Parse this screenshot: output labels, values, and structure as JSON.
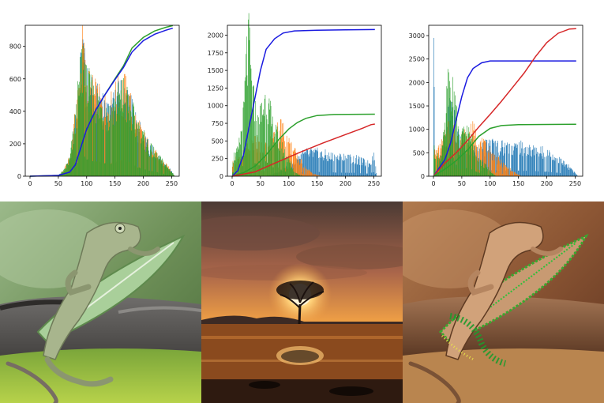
{
  "chart_data": [
    {
      "type": "bar",
      "xlim": [
        0,
        255
      ],
      "ylim": [
        0,
        930
      ],
      "xticks": [
        0,
        50,
        100,
        150,
        200,
        250
      ],
      "yticks": [
        0,
        200,
        400,
        600,
        800
      ],
      "bar_colors": [
        "#1f77b4",
        "#ff7f0e",
        "#2ca02c"
      ],
      "bar_profiles": [
        [
          [
            0,
            0
          ],
          [
            30,
            2
          ],
          [
            50,
            8
          ],
          [
            60,
            40
          ],
          [
            70,
            120
          ],
          [
            80,
            380
          ],
          [
            88,
            650
          ],
          [
            93,
            850
          ],
          [
            98,
            620
          ],
          [
            110,
            540
          ],
          [
            125,
            470
          ],
          [
            140,
            420
          ],
          [
            155,
            520
          ],
          [
            165,
            560
          ],
          [
            175,
            470
          ],
          [
            190,
            320
          ],
          [
            210,
            190
          ],
          [
            235,
            90
          ],
          [
            250,
            30
          ],
          [
            255,
            0
          ]
        ],
        [
          [
            0,
            0
          ],
          [
            30,
            2
          ],
          [
            50,
            8
          ],
          [
            60,
            40
          ],
          [
            70,
            120
          ],
          [
            80,
            390
          ],
          [
            88,
            660
          ],
          [
            93,
            880
          ],
          [
            98,
            630
          ],
          [
            110,
            560
          ],
          [
            125,
            480
          ],
          [
            140,
            440
          ],
          [
            155,
            560
          ],
          [
            165,
            590
          ],
          [
            175,
            480
          ],
          [
            190,
            330
          ],
          [
            210,
            190
          ],
          [
            235,
            90
          ],
          [
            250,
            30
          ],
          [
            255,
            0
          ]
        ],
        [
          [
            0,
            0
          ],
          [
            30,
            2
          ],
          [
            50,
            8
          ],
          [
            60,
            40
          ],
          [
            70,
            120
          ],
          [
            80,
            380
          ],
          [
            88,
            650
          ],
          [
            93,
            850
          ],
          [
            98,
            620
          ],
          [
            110,
            540
          ],
          [
            125,
            470
          ],
          [
            140,
            420
          ],
          [
            155,
            520
          ],
          [
            165,
            560
          ],
          [
            175,
            470
          ],
          [
            190,
            320
          ],
          [
            210,
            190
          ],
          [
            235,
            90
          ],
          [
            250,
            30
          ],
          [
            255,
            0
          ]
        ]
      ],
      "lines": [
        {
          "color": "#2ca02c",
          "points": [
            [
              0,
              0
            ],
            [
              50,
              5
            ],
            [
              70,
              25
            ],
            [
              80,
              70
            ],
            [
              90,
              180
            ],
            [
              100,
              290
            ],
            [
              115,
              400
            ],
            [
              130,
              490
            ],
            [
              150,
              600
            ],
            [
              165,
              680
            ],
            [
              180,
              790
            ],
            [
              200,
              855
            ],
            [
              220,
              895
            ],
            [
              240,
              918
            ],
            [
              252,
              928
            ]
          ]
        },
        {
          "color": "#1a1ae0",
          "points": [
            [
              0,
              0
            ],
            [
              50,
              5
            ],
            [
              70,
              25
            ],
            [
              80,
              70
            ],
            [
              90,
              180
            ],
            [
              100,
              290
            ],
            [
              115,
              400
            ],
            [
              130,
              490
            ],
            [
              150,
              595
            ],
            [
              165,
              670
            ],
            [
              180,
              765
            ],
            [
              200,
              835
            ],
            [
              220,
              875
            ],
            [
              240,
              900
            ],
            [
              252,
              912
            ]
          ]
        }
      ]
    },
    {
      "type": "bar",
      "xlim": [
        0,
        255
      ],
      "ylim": [
        0,
        2140
      ],
      "xticks": [
        0,
        50,
        100,
        150,
        200,
        250
      ],
      "yticks": [
        0,
        250,
        500,
        750,
        1000,
        1250,
        1500,
        1750,
        2000
      ],
      "bar_colors": [
        "#1f77b4",
        "#ff7f0e",
        "#2ca02c"
      ],
      "bar_profiles": [
        [
          [
            0,
            0
          ],
          [
            60,
            0
          ],
          [
            80,
            60
          ],
          [
            100,
            150
          ],
          [
            120,
            330
          ],
          [
            140,
            370
          ],
          [
            160,
            340
          ],
          [
            180,
            300
          ],
          [
            200,
            290
          ],
          [
            220,
            260
          ],
          [
            240,
            200
          ],
          [
            250,
            330
          ],
          [
            255,
            0
          ]
        ],
        [
          [
            0,
            200
          ],
          [
            20,
            350
          ],
          [
            40,
            550
          ],
          [
            60,
            420
          ],
          [
            75,
            650
          ],
          [
            85,
            780
          ],
          [
            100,
            520
          ],
          [
            115,
            290
          ],
          [
            130,
            120
          ],
          [
            145,
            30
          ],
          [
            160,
            0
          ],
          [
            255,
            0
          ]
        ],
        [
          [
            0,
            300
          ],
          [
            10,
            380
          ],
          [
            20,
            950
          ],
          [
            25,
            1900
          ],
          [
            30,
            2050
          ],
          [
            35,
            1300
          ],
          [
            45,
            800
          ],
          [
            55,
            1150
          ],
          [
            60,
            1250
          ],
          [
            70,
            800
          ],
          [
            85,
            500
          ],
          [
            100,
            250
          ],
          [
            110,
            60
          ],
          [
            125,
            0
          ],
          [
            255,
            0
          ]
        ]
      ],
      "lines": [
        {
          "color": "#1a1ae0",
          "points": [
            [
              0,
              0
            ],
            [
              10,
              80
            ],
            [
              20,
              300
            ],
            [
              30,
              700
            ],
            [
              40,
              1100
            ],
            [
              50,
              1500
            ],
            [
              60,
              1800
            ],
            [
              75,
              1950
            ],
            [
              90,
              2030
            ],
            [
              110,
              2060
            ],
            [
              150,
              2070
            ],
            [
              200,
              2075
            ],
            [
              252,
              2080
            ]
          ]
        },
        {
          "color": "#2ca02c",
          "points": [
            [
              0,
              0
            ],
            [
              20,
              50
            ],
            [
              40,
              140
            ],
            [
              60,
              300
            ],
            [
              80,
              500
            ],
            [
              100,
              670
            ],
            [
              115,
              760
            ],
            [
              130,
              820
            ],
            [
              150,
              860
            ],
            [
              180,
              875
            ],
            [
              252,
              880
            ]
          ]
        },
        {
          "color": "#d62728",
          "points": [
            [
              0,
              0
            ],
            [
              40,
              60
            ],
            [
              80,
              200
            ],
            [
              120,
              340
            ],
            [
              160,
              470
            ],
            [
              200,
              590
            ],
            [
              230,
              680
            ],
            [
              245,
              730
            ],
            [
              252,
              740
            ]
          ]
        }
      ]
    },
    {
      "type": "bar",
      "xlim": [
        0,
        255
      ],
      "ylim": [
        0,
        3220
      ],
      "xticks": [
        0,
        50,
        100,
        150,
        200,
        250
      ],
      "yticks": [
        0,
        500,
        1000,
        1500,
        2000,
        2500,
        3000
      ],
      "bar_colors": [
        "#1f77b4",
        "#ff7f0e",
        "#2ca02c"
      ],
      "bar_profiles": [
        [
          [
            0,
            2600
          ],
          [
            3,
            300
          ],
          [
            10,
            400
          ],
          [
            20,
            700
          ],
          [
            30,
            1800
          ],
          [
            40,
            1000
          ],
          [
            50,
            700
          ],
          [
            60,
            600
          ],
          [
            80,
            600
          ],
          [
            100,
            750
          ],
          [
            120,
            700
          ],
          [
            140,
            700
          ],
          [
            160,
            650
          ],
          [
            180,
            600
          ],
          [
            200,
            550
          ],
          [
            220,
            400
          ],
          [
            240,
            200
          ],
          [
            255,
            0
          ]
        ],
        [
          [
            0,
            500
          ],
          [
            10,
            600
          ],
          [
            20,
            900
          ],
          [
            30,
            1300
          ],
          [
            40,
            900
          ],
          [
            60,
            900
          ],
          [
            70,
            1050
          ],
          [
            80,
            800
          ],
          [
            100,
            550
          ],
          [
            120,
            300
          ],
          [
            140,
            100
          ],
          [
            155,
            0
          ],
          [
            255,
            0
          ]
        ],
        [
          [
            0,
            600
          ],
          [
            10,
            400
          ],
          [
            20,
            1000
          ],
          [
            25,
            2200
          ],
          [
            30,
            1700
          ],
          [
            35,
            2200
          ],
          [
            45,
            700
          ],
          [
            55,
            1100
          ],
          [
            65,
            900
          ],
          [
            80,
            400
          ],
          [
            100,
            120
          ],
          [
            110,
            0
          ],
          [
            255,
            0
          ]
        ]
      ],
      "lines": [
        {
          "color": "#1a1ae0",
          "points": [
            [
              0,
              0
            ],
            [
              20,
              350
            ],
            [
              30,
              700
            ],
            [
              40,
              1200
            ],
            [
              50,
              1700
            ],
            [
              60,
              2100
            ],
            [
              70,
              2300
            ],
            [
              85,
              2420
            ],
            [
              100,
              2460
            ],
            [
              150,
              2460
            ],
            [
              200,
              2460
            ],
            [
              252,
              2460
            ]
          ]
        },
        {
          "color": "#d62728",
          "points": [
            [
              0,
              0
            ],
            [
              20,
              280
            ],
            [
              40,
              500
            ],
            [
              60,
              760
            ],
            [
              80,
              1050
            ],
            [
              100,
              1320
            ],
            [
              120,
              1600
            ],
            [
              140,
              1900
            ],
            [
              160,
              2200
            ],
            [
              180,
              2550
            ],
            [
              200,
              2850
            ],
            [
              220,
              3050
            ],
            [
              240,
              3140
            ],
            [
              252,
              3150
            ]
          ]
        },
        {
          "color": "#2ca02c",
          "points": [
            [
              0,
              0
            ],
            [
              20,
              150
            ],
            [
              40,
              330
            ],
            [
              60,
              560
            ],
            [
              80,
              850
            ],
            [
              100,
              1020
            ],
            [
              120,
              1080
            ],
            [
              150,
              1100
            ],
            [
              200,
              1105
            ],
            [
              252,
              1110
            ]
          ]
        }
      ]
    }
  ],
  "photos": [
    {
      "subject": "chameleon-with-leaf"
    },
    {
      "subject": "sunset-tree"
    },
    {
      "subject": "chameleon-equalized"
    }
  ]
}
